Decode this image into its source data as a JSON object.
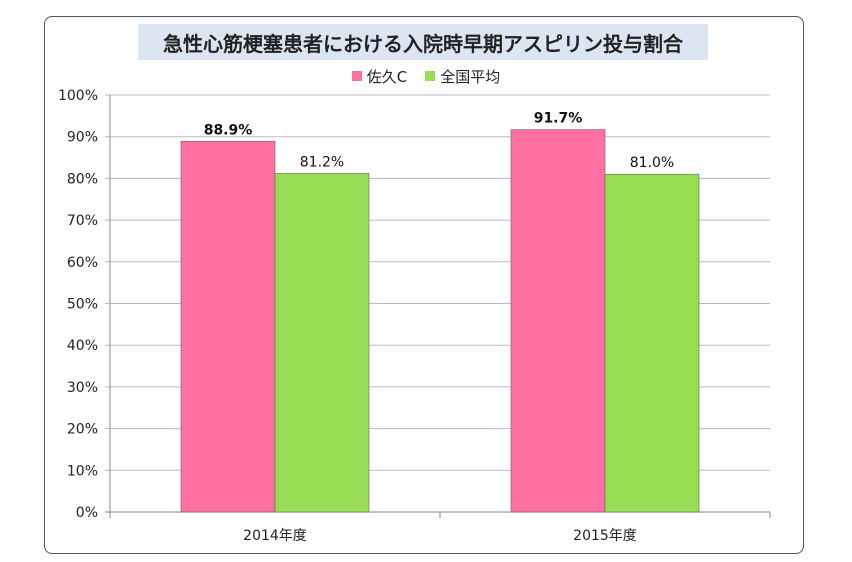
{
  "chart_data": {
    "type": "bar",
    "title": "急性心筋梗塞患者における入院時早期アスピリン投与割合",
    "categories": [
      "2014年度",
      "2015年度"
    ],
    "series": [
      {
        "name": "佐久C",
        "values": [
          88.9,
          91.7
        ],
        "labels": [
          "88.9%",
          "91.7%"
        ],
        "color": "#ff6fa2",
        "label_bold": true
      },
      {
        "name": "全国平均",
        "values": [
          81.2,
          81.0
        ],
        "labels": [
          "81.2%",
          "81.0%"
        ],
        "color": "#99dd55",
        "label_bold": false
      }
    ],
    "ylim": [
      0,
      100
    ],
    "yticks": [
      "0%",
      "10%",
      "20%",
      "30%",
      "40%",
      "50%",
      "60%",
      "70%",
      "80%",
      "90%",
      "100%"
    ],
    "grid": true,
    "legend": "top-center"
  }
}
